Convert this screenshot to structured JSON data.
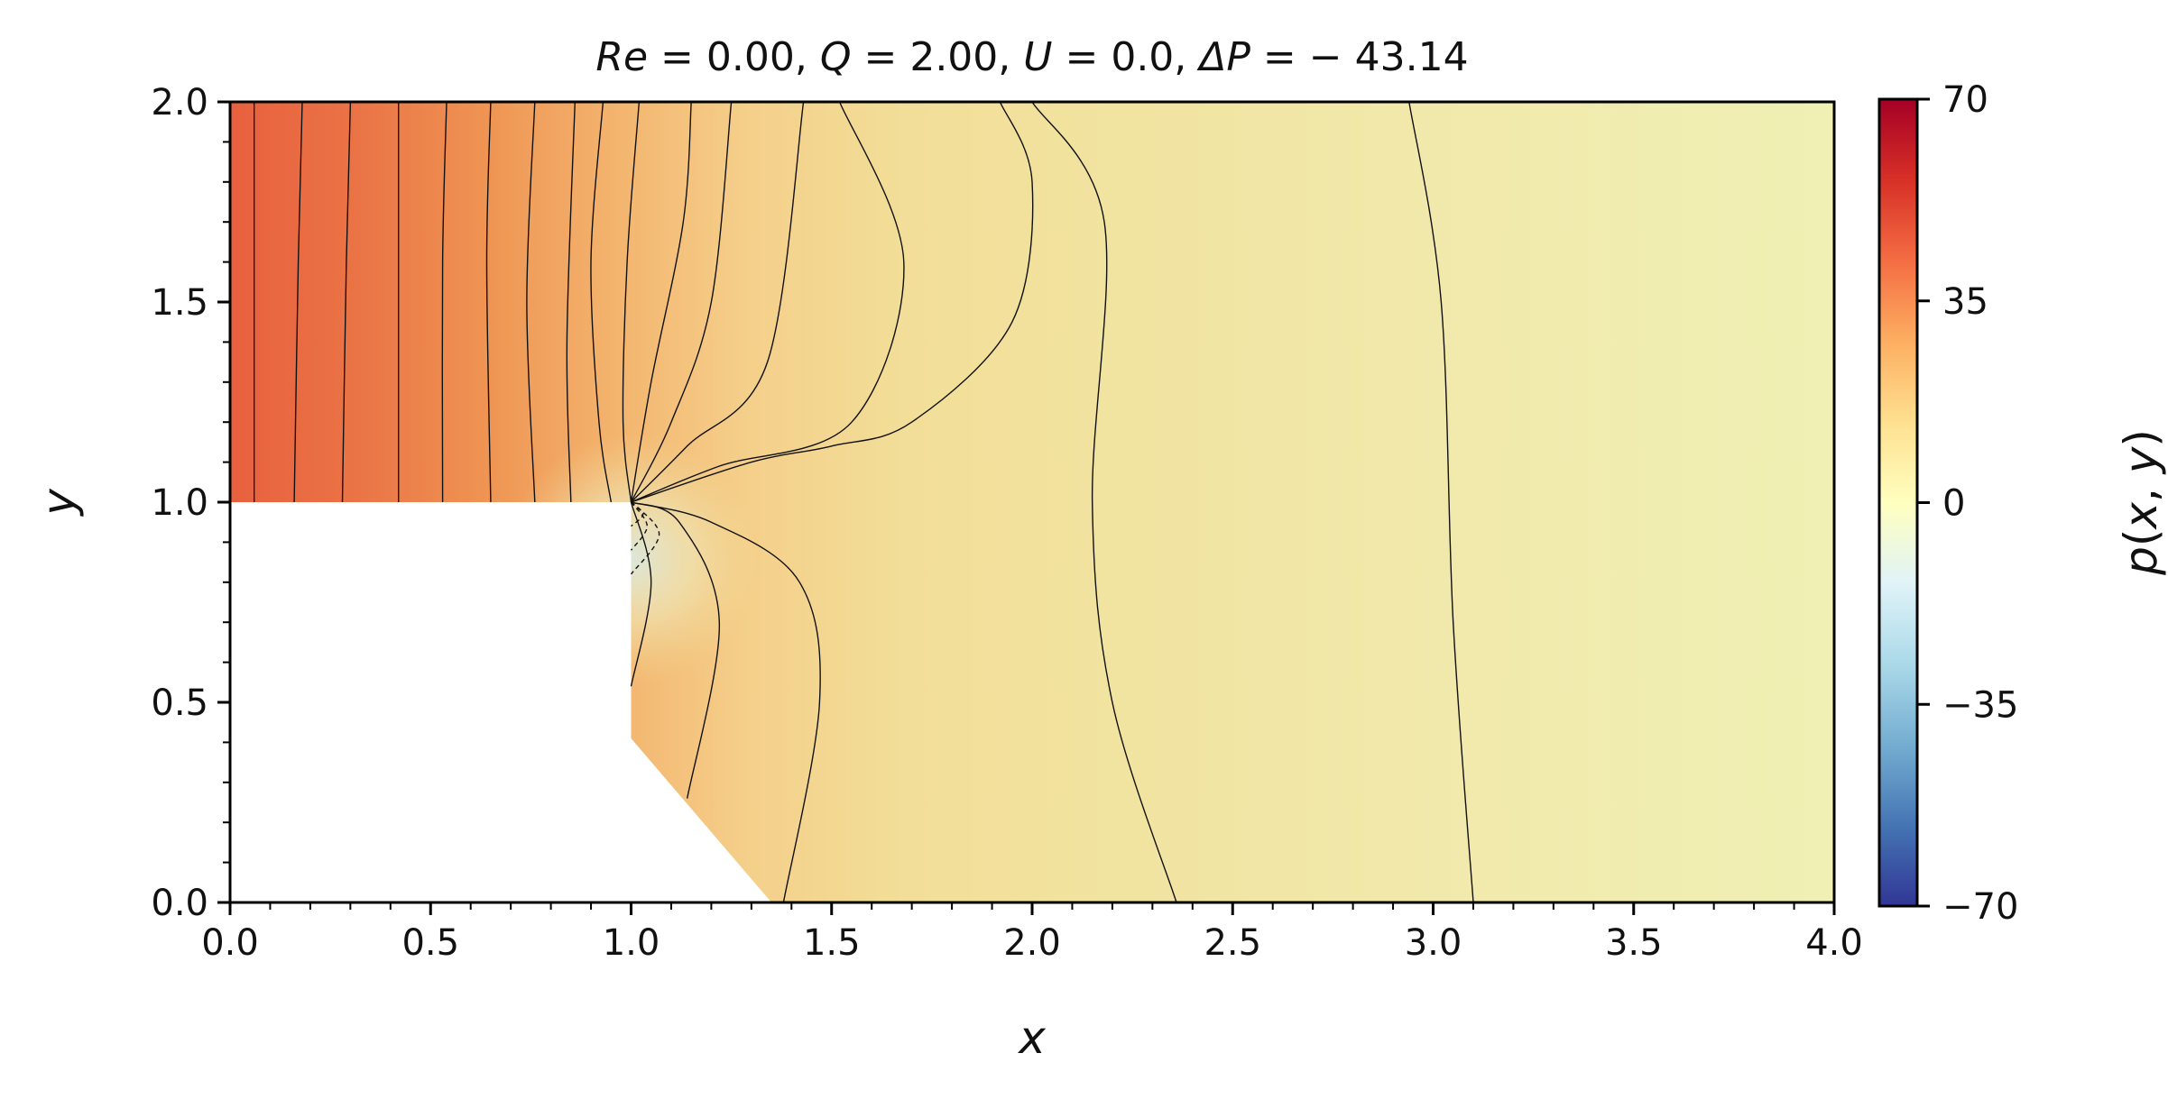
{
  "chart_data": {
    "type": "heatmap",
    "title": "Re = 0.00, Q = 2.00, U = 0.0, ΔP = − 43.14",
    "title_parts": [
      "Re",
      " = 0.00, ",
      "Q",
      " = 2.00, ",
      "U",
      " = 0.0, ",
      "ΔP",
      " = − 43.14"
    ],
    "xlabel": "x",
    "ylabel": "y",
    "colorbar_label": "p(x, y)",
    "colorbar_label_parts": [
      "p",
      "(",
      "x",
      ", ",
      "y",
      ")"
    ],
    "xlim": [
      0.0,
      4.0
    ],
    "ylim": [
      0.0,
      2.0
    ],
    "xticks": [
      0.0,
      0.5,
      1.0,
      1.5,
      2.0,
      2.5,
      3.0,
      3.5,
      4.0
    ],
    "xtick_labels": [
      "0.0",
      "0.5",
      "1.0",
      "1.5",
      "2.0",
      "2.5",
      "3.0",
      "3.5",
      "4.0"
    ],
    "yticks": [
      0.0,
      0.5,
      1.0,
      1.5,
      2.0
    ],
    "ytick_labels": [
      "0.0",
      "0.5",
      "1.0",
      "1.5",
      "2.0"
    ],
    "colorbar_range": [
      -70,
      70
    ],
    "colorbar_ticks": [
      70,
      35,
      0,
      -35,
      -70
    ],
    "colorbar_tick_labels": [
      "70",
      "35",
      "0",
      "−35",
      "−70"
    ],
    "colormap": "RdYlBu_r",
    "masked_region": [
      [
        0.0,
        0.0
      ],
      [
        0.0,
        1.0
      ],
      [
        1.0,
        1.0
      ],
      [
        1.0,
        0.41
      ],
      [
        1.35,
        0.0
      ]
    ],
    "contours": [
      [
        [
          0.0,
          1.0
        ],
        [
          0.0,
          2.0
        ]
      ],
      [
        [
          0.06,
          1.0
        ],
        [
          0.06,
          2.0
        ]
      ],
      [
        [
          0.16,
          1.0
        ],
        [
          0.17,
          1.6
        ],
        [
          0.18,
          2.0
        ]
      ],
      [
        [
          0.28,
          1.0
        ],
        [
          0.29,
          1.6
        ],
        [
          0.3,
          2.0
        ]
      ],
      [
        [
          0.42,
          1.0
        ],
        [
          0.42,
          1.6
        ],
        [
          0.42,
          2.0
        ]
      ],
      [
        [
          0.53,
          1.0
        ],
        [
          0.53,
          1.6
        ],
        [
          0.54,
          2.0
        ]
      ],
      [
        [
          0.65,
          1.0
        ],
        [
          0.64,
          1.6
        ],
        [
          0.65,
          2.0
        ]
      ],
      [
        [
          0.76,
          1.0
        ],
        [
          0.74,
          1.5
        ],
        [
          0.76,
          2.0
        ]
      ],
      [
        [
          0.85,
          1.0
        ],
        [
          0.84,
          1.4
        ],
        [
          0.86,
          2.0
        ]
      ],
      [
        [
          0.95,
          1.0
        ],
        [
          0.92,
          1.2
        ],
        [
          0.9,
          1.6
        ],
        [
          0.93,
          2.0
        ]
      ],
      [
        [
          1.0,
          1.0
        ],
        [
          0.98,
          1.2
        ],
        [
          0.99,
          1.6
        ],
        [
          1.02,
          2.0
        ]
      ],
      [
        [
          1.0,
          1.0
        ],
        [
          1.05,
          1.3
        ],
        [
          1.13,
          1.7
        ],
        [
          1.15,
          2.0
        ]
      ],
      [
        [
          1.0,
          1.0
        ],
        [
          1.1,
          1.2
        ],
        [
          1.2,
          1.5
        ],
        [
          1.25,
          2.0
        ]
      ],
      [
        [
          1.0,
          1.0
        ],
        [
          1.14,
          1.14
        ],
        [
          1.34,
          1.35
        ],
        [
          1.43,
          2.0
        ]
      ],
      [
        [
          1.0,
          1.0
        ],
        [
          1.22,
          1.09
        ],
        [
          1.55,
          1.2
        ],
        [
          1.68,
          1.6
        ],
        [
          1.52,
          2.0
        ]
      ],
      [
        [
          1.0,
          1.0
        ],
        [
          1.3,
          1.1
        ],
        [
          1.5,
          1.14
        ],
        [
          1.7,
          1.2
        ],
        [
          1.95,
          1.45
        ],
        [
          2.0,
          1.8
        ],
        [
          1.92,
          2.0
        ]
      ],
      [
        [
          1.0,
          1.0
        ],
        [
          1.12,
          0.95
        ],
        [
          1.22,
          0.7
        ],
        [
          1.14,
          0.26
        ]
      ],
      [
        [
          1.0,
          1.0
        ],
        [
          1.2,
          0.95
        ],
        [
          1.42,
          0.8
        ],
        [
          1.47,
          0.5
        ],
        [
          1.38,
          0.0
        ]
      ],
      [
        [
          1.0,
          1.0
        ],
        [
          1.05,
          0.8
        ],
        [
          1.0,
          0.54
        ]
      ],
      [
        [
          2.0,
          2.0
        ],
        [
          2.18,
          1.7
        ],
        [
          2.15,
          1.0
        ],
        [
          2.2,
          0.5
        ],
        [
          2.36,
          0.0
        ]
      ],
      [
        [
          2.94,
          2.0
        ],
        [
          3.02,
          1.5
        ],
        [
          3.05,
          0.7
        ],
        [
          3.1,
          0.0
        ]
      ],
      [
        [
          4.0,
          0.0
        ],
        [
          4.0,
          2.0
        ]
      ]
    ],
    "dashed_contours": [
      [
        [
          1.0,
          1.0
        ],
        [
          1.04,
          0.94
        ],
        [
          1.0,
          0.88
        ]
      ],
      [
        [
          1.0,
          1.0
        ],
        [
          1.07,
          0.92
        ],
        [
          1.0,
          0.82
        ]
      ],
      [
        [
          1.0,
          1.0
        ],
        [
          1.03,
          0.97
        ],
        [
          1.0,
          0.94
        ]
      ]
    ]
  }
}
